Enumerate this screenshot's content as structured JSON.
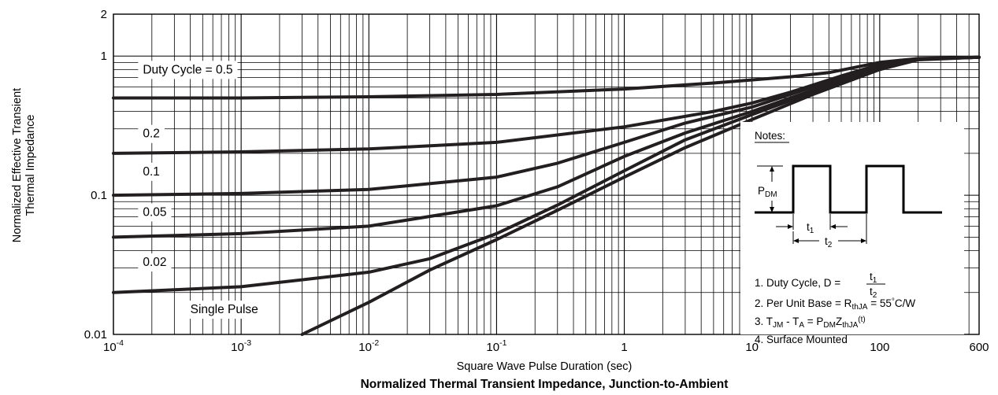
{
  "chart_data": {
    "type": "line",
    "title": "Normalized Thermal Transient Impedance, Junction-to-Ambient",
    "xlabel": "Square Wave Pulse Duration (sec)",
    "ylabel": "Normalized Effective Transient Thermal Impedance",
    "ylabel_lines": [
      "Normalized Effective Transient",
      "Thermal Impedance"
    ],
    "x_scale": "log",
    "y_scale": "log",
    "xlim": [
      0.0001,
      600
    ],
    "ylim": [
      0.01,
      2
    ],
    "grid": true,
    "x_ticks": [
      {
        "value": 0.0001,
        "base": "10",
        "exp": "-4"
      },
      {
        "value": 0.001,
        "base": "10",
        "exp": "-3"
      },
      {
        "value": 0.01,
        "base": "10",
        "exp": "-2"
      },
      {
        "value": 0.1,
        "base": "10",
        "exp": "-1"
      },
      {
        "value": 1,
        "base": "1",
        "exp": ""
      },
      {
        "value": 10,
        "base": "10",
        "exp": ""
      },
      {
        "value": 100,
        "base": "100",
        "exp": ""
      },
      {
        "value": 600,
        "base": "600",
        "exp": ""
      }
    ],
    "y_ticks": [
      {
        "value": 0.01,
        "label": "0.01"
      },
      {
        "value": 0.1,
        "label": "0.1"
      },
      {
        "value": 1,
        "label": "1"
      },
      {
        "value": 2,
        "label": "2"
      }
    ],
    "series": [
      {
        "label": "Duty Cycle = 0.5",
        "label_at": [
          0.00017,
          0.75
        ],
        "points": [
          [
            0.0001,
            0.5
          ],
          [
            0.001,
            0.5
          ],
          [
            0.01,
            0.51
          ],
          [
            0.1,
            0.53
          ],
          [
            1,
            0.58
          ],
          [
            5,
            0.64
          ],
          [
            20,
            0.71
          ],
          [
            40,
            0.76
          ],
          [
            100,
            0.9
          ],
          [
            200,
            0.96
          ],
          [
            600,
            0.98
          ]
        ]
      },
      {
        "label": "0.2",
        "label_at": [
          0.00017,
          0.26
        ],
        "points": [
          [
            0.0001,
            0.2
          ],
          [
            0.001,
            0.205
          ],
          [
            0.01,
            0.215
          ],
          [
            0.1,
            0.24
          ],
          [
            1,
            0.31
          ],
          [
            5,
            0.4
          ],
          [
            10,
            0.46
          ],
          [
            20,
            0.55
          ],
          [
            50,
            0.72
          ],
          [
            100,
            0.87
          ],
          [
            200,
            0.95
          ],
          [
            600,
            0.98
          ]
        ]
      },
      {
        "label": "0.1",
        "label_at": [
          0.00017,
          0.139
        ],
        "points": [
          [
            0.0001,
            0.1
          ],
          [
            0.001,
            0.103
          ],
          [
            0.01,
            0.11
          ],
          [
            0.1,
            0.135
          ],
          [
            0.3,
            0.17
          ],
          [
            1,
            0.24
          ],
          [
            3,
            0.33
          ],
          [
            10,
            0.43
          ],
          [
            30,
            0.6
          ],
          [
            100,
            0.85
          ],
          [
            200,
            0.95
          ],
          [
            600,
            0.98
          ]
        ]
      },
      {
        "label": "0.05",
        "label_at": [
          0.00017,
          0.071
        ],
        "points": [
          [
            0.0001,
            0.05
          ],
          [
            0.001,
            0.053
          ],
          [
            0.01,
            0.06
          ],
          [
            0.1,
            0.084
          ],
          [
            0.3,
            0.115
          ],
          [
            1,
            0.19
          ],
          [
            3,
            0.28
          ],
          [
            10,
            0.4
          ],
          [
            30,
            0.57
          ],
          [
            100,
            0.84
          ],
          [
            200,
            0.95
          ],
          [
            600,
            0.98
          ]
        ]
      },
      {
        "label": "0.02",
        "label_at": [
          0.00017,
          0.031
        ],
        "points": [
          [
            0.0001,
            0.02
          ],
          [
            0.001,
            0.022
          ],
          [
            0.01,
            0.028
          ],
          [
            0.03,
            0.035
          ],
          [
            0.1,
            0.053
          ],
          [
            0.3,
            0.085
          ],
          [
            1,
            0.15
          ],
          [
            3,
            0.25
          ],
          [
            10,
            0.38
          ],
          [
            30,
            0.55
          ],
          [
            100,
            0.83
          ],
          [
            200,
            0.95
          ],
          [
            600,
            0.98
          ]
        ]
      },
      {
        "label": "Single Pulse",
        "label_at": [
          0.0004,
          0.0142
        ],
        "points": [
          [
            0.003,
            0.01
          ],
          [
            0.01,
            0.017
          ],
          [
            0.03,
            0.029
          ],
          [
            0.1,
            0.048
          ],
          [
            0.3,
            0.078
          ],
          [
            1,
            0.135
          ],
          [
            3,
            0.22
          ],
          [
            10,
            0.35
          ],
          [
            30,
            0.53
          ],
          [
            100,
            0.8
          ],
          [
            200,
            0.94
          ],
          [
            600,
            0.98
          ]
        ]
      }
    ],
    "notes": {
      "title": "Notes:",
      "pdm_label": "P",
      "pdm_sub": "DM",
      "t1_label": "t",
      "t1_sub": "1",
      "t2_label": "t",
      "t2_sub": "2",
      "items": [
        {
          "prefix": "1. Duty Cycle, D = ",
          "num": "t",
          "num_sub": "1",
          "den": "t",
          "den_sub": "2"
        },
        {
          "a": "2. Per Unit Base = R",
          "a_sub": "thJA",
          "b": " = 55",
          "deg": "°",
          "c": "C/W"
        },
        {
          "a": "3. T",
          "a_sub": "JM",
          "b": " - T",
          "b_sub": "A",
          "c": " = P",
          "c_sub": "DM",
          "d": "Z",
          "d_sub": "thJA",
          "e": "(t)"
        },
        {
          "a": "4. Surface Mounted"
        }
      ]
    }
  }
}
